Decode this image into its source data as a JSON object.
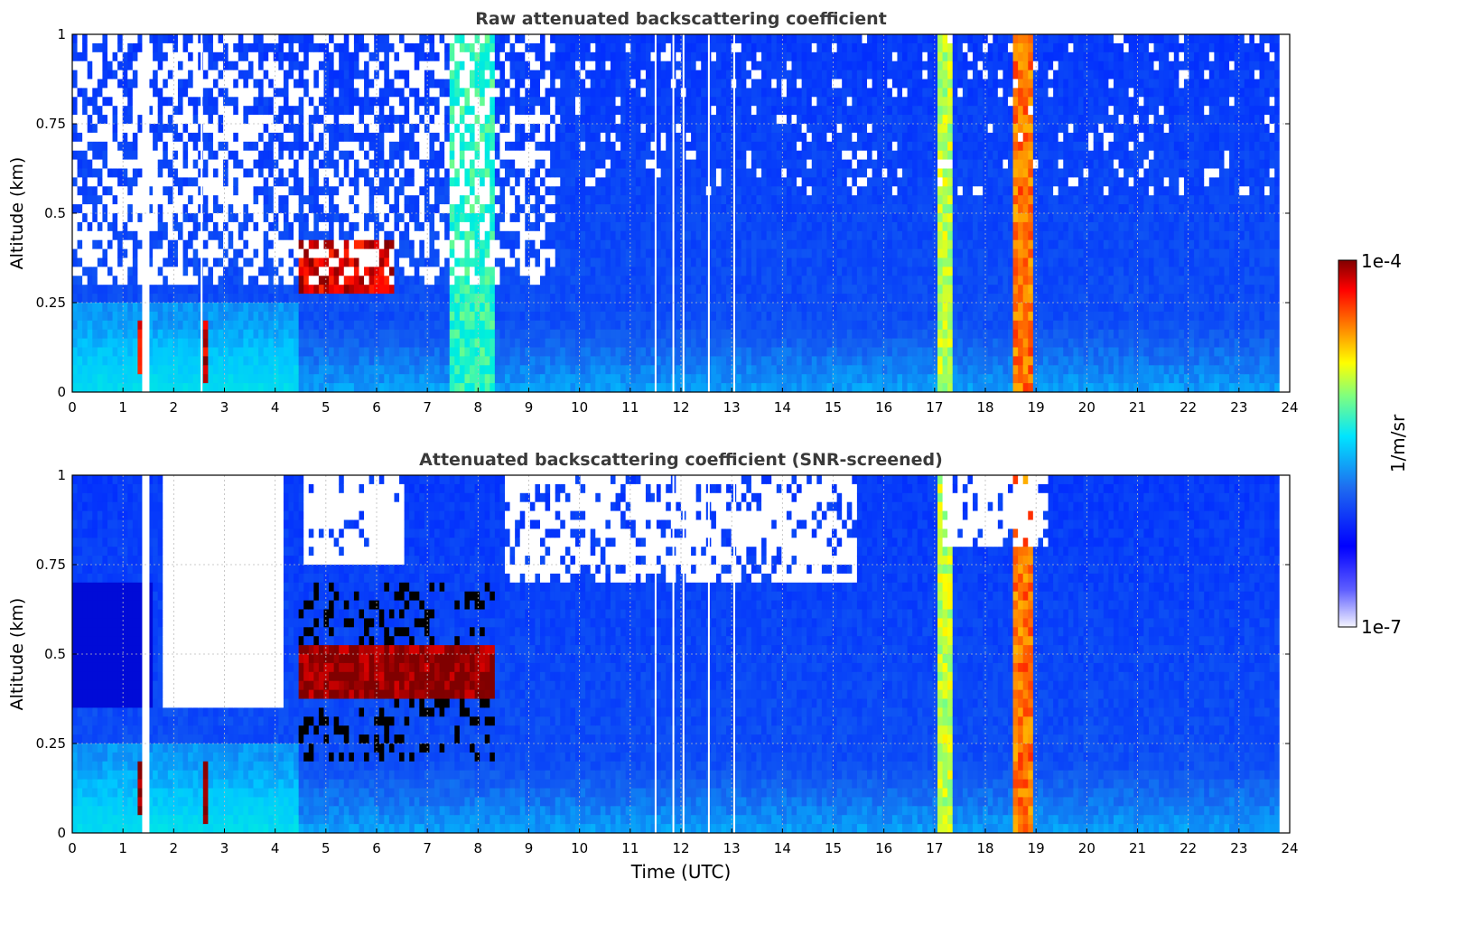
{
  "colors": {
    "colormap": [
      "#ffffff",
      "#0000ff",
      "#1e6cf0",
      "#00e5ff",
      "#7fff7f",
      "#ffff00",
      "#ff7f00",
      "#ff0000",
      "#800000"
    ],
    "screened_extra": "#000000"
  },
  "chart_data": [
    {
      "type": "heatmap",
      "title": "Raw attenuated backscattering coefficient",
      "xlabel": "",
      "ylabel": "Altitude (km)",
      "xlim": [
        0,
        24
      ],
      "ylim": [
        0,
        1
      ],
      "xticks": [
        "0",
        "1",
        "2",
        "3",
        "4",
        "5",
        "6",
        "7",
        "8",
        "9",
        "10",
        "11",
        "12",
        "13",
        "14",
        "15",
        "16",
        "17",
        "18",
        "19",
        "20",
        "21",
        "22",
        "23",
        "24"
      ],
      "yticks": [
        "0",
        "0.25",
        "0.5",
        "0.75",
        "1"
      ],
      "grid": true,
      "data_end_hour": 23.8,
      "gaps_hours": [
        1.45,
        2.55,
        11.5,
        11.85,
        12.05,
        12.55,
        13.05
      ],
      "notable_features": [
        {
          "start": 1.25,
          "end": 1.4,
          "alt": 0.13,
          "level": 0.95
        },
        {
          "start": 2.55,
          "end": 2.7,
          "alt": 0.11,
          "level": 0.95
        },
        {
          "start": 4.5,
          "end": 6.3,
          "alt": 0.35,
          "level": 0.95
        },
        {
          "start": 7.4,
          "end": 8.3,
          "alt": 0.0,
          "level": 0.6
        },
        {
          "start": 17.05,
          "end": 17.35,
          "alt": 0.0,
          "level": 0.7
        },
        {
          "start": 18.55,
          "end": 18.9,
          "alt": 0.0,
          "level": 0.85
        }
      ]
    },
    {
      "type": "heatmap",
      "title": "Attenuated backscattering coefficient (SNR-screened)",
      "xlabel": "Time (UTC)",
      "ylabel": "Altitude (km)",
      "xlim": [
        0,
        24
      ],
      "ylim": [
        0,
        1
      ],
      "xticks": [
        "0",
        "1",
        "2",
        "3",
        "4",
        "5",
        "6",
        "7",
        "8",
        "9",
        "10",
        "11",
        "12",
        "13",
        "14",
        "15",
        "16",
        "17",
        "18",
        "19",
        "20",
        "21",
        "22",
        "23",
        "24"
      ],
      "yticks": [
        "0",
        "0.25",
        "0.5",
        "0.75",
        "1"
      ],
      "grid": true,
      "data_end_hour": 23.8,
      "gaps_hours": [
        1.45,
        11.5,
        11.85,
        12.05,
        12.55,
        13.05
      ],
      "notable_features": [
        {
          "start": 1.25,
          "end": 1.4,
          "alt": 0.13,
          "level": 1.0
        },
        {
          "start": 2.55,
          "end": 2.7,
          "alt": 0.11,
          "level": 1.0
        },
        {
          "start": 4.5,
          "end": 8.3,
          "alt": 0.45,
          "level": 1.0
        },
        {
          "start": 17.05,
          "end": 17.35,
          "alt": 0.0,
          "level": 0.7
        },
        {
          "start": 18.55,
          "end": 18.9,
          "alt": 0.0,
          "level": 0.85
        }
      ]
    }
  ],
  "colorbar": {
    "label": "1/m/sr",
    "max_label": "1e-4",
    "min_label": "1e-7",
    "scale": "log",
    "range": [
      1e-07,
      0.0001
    ]
  }
}
